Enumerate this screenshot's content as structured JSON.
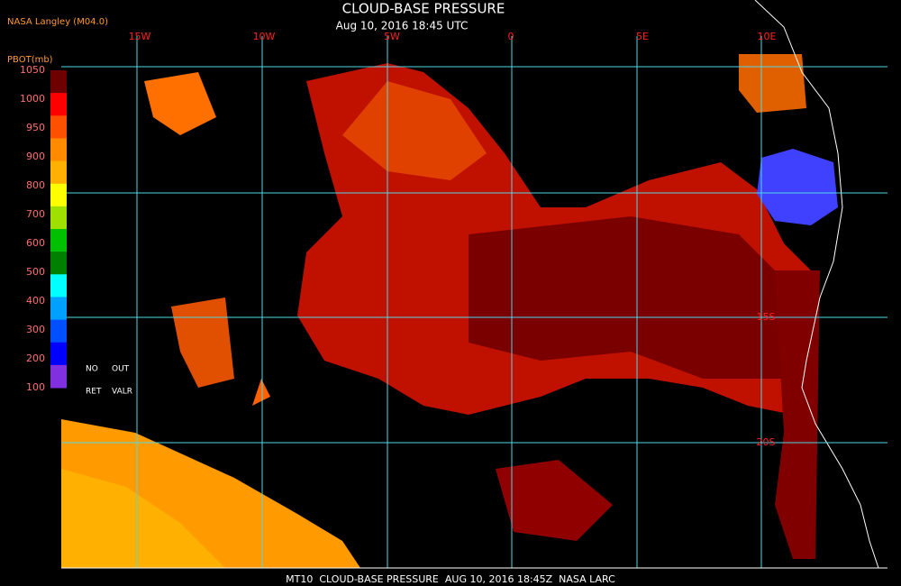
{
  "header": {
    "source": "NASA Langley (M04.0)",
    "title": "CLOUD-BASE PRESSURE",
    "subtitle": "Aug 10, 2016 18:45 UTC"
  },
  "legend": {
    "title": "PBOT(mb)",
    "ticks": [
      1050,
      1000,
      950,
      900,
      800,
      700,
      600,
      500,
      400,
      300,
      200,
      100
    ],
    "colors": [
      "#6e0000",
      "#ff0000",
      "#ff5000",
      "#ff8a00",
      "#ffb000",
      "#ffff00",
      "#a0e000",
      "#00c000",
      "#008000",
      "#00ffff",
      "#00a0ff",
      "#0050ff",
      "#0000ff",
      "#8030e0"
    ],
    "notes": [
      "NO",
      "OUT",
      "RET",
      "VALR"
    ]
  },
  "map": {
    "lon_labels": [
      "15W",
      "10W",
      "5W",
      "0",
      "5E",
      "10E"
    ],
    "lat_labels": [
      "15S",
      "20S"
    ]
  },
  "footer": "MT10  CLOUD-BASE PRESSURE  AUG 10, 2016 18:45Z  NASA LARC"
}
